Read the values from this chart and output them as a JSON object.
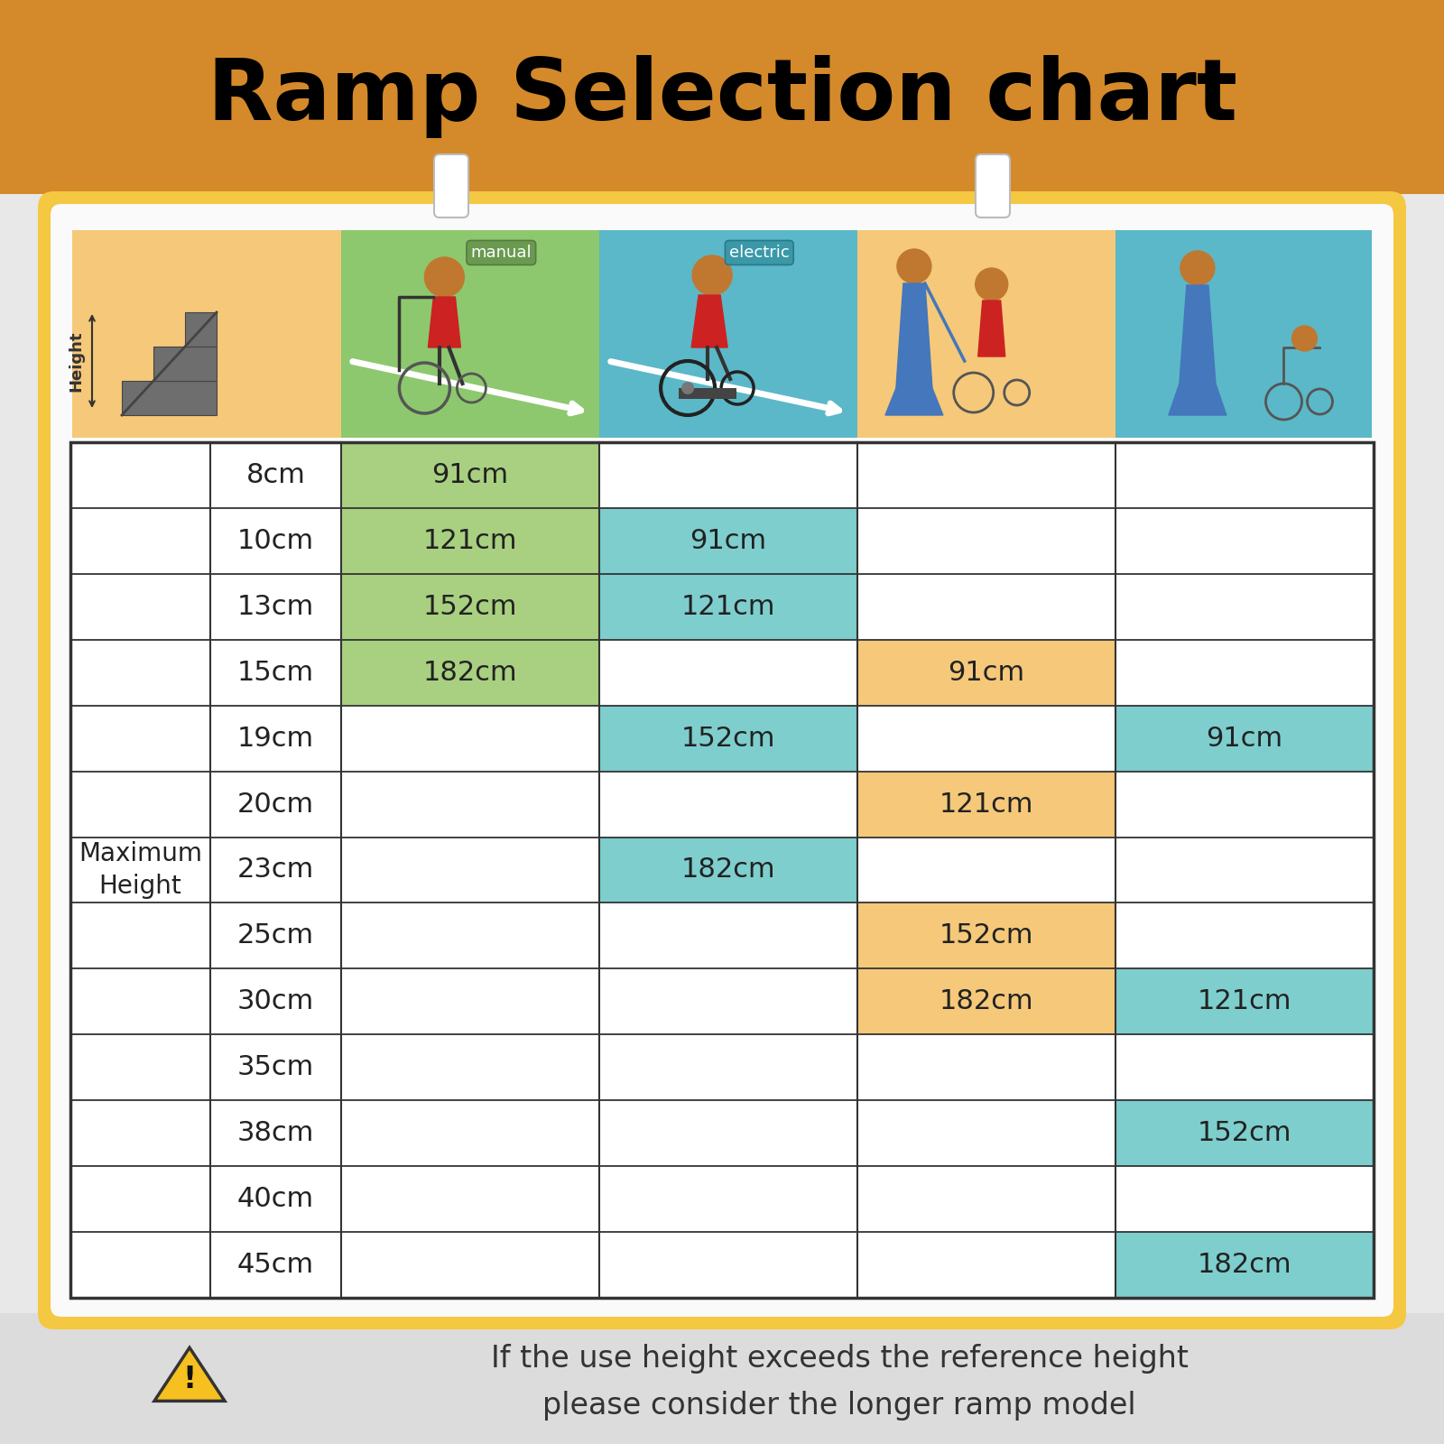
{
  "title": "Ramp Selection chart",
  "title_bg": "#D4892A",
  "title_color": "#000000",
  "card_bg": "#F5C842",
  "card_inner_bg": "#F5D87A",
  "outer_bg": "#E8E8E8",
  "header_orange_bg": "#F5C87A",
  "header_green_bg": "#8DC86E",
  "header_blue_bg": "#5BB8C8",
  "header_orange2_bg": "#F5C87A",
  "header_teal_bg": "#5BB8C8",
  "cell_green_bg": "#A8D080",
  "cell_blue_bg": "#7ECECE",
  "cell_orange_bg": "#F5C87A",
  "cell_teal_bg": "#7ECECE",
  "heights": [
    "8cm",
    "10cm",
    "13cm",
    "15cm",
    "19cm",
    "20cm",
    "23cm",
    "25cm",
    "30cm",
    "35cm",
    "38cm",
    "40cm",
    "45cm"
  ],
  "col1_values": [
    "91cm",
    "121cm",
    "152cm",
    "182cm",
    "",
    "",
    "",
    "",
    "",
    "",
    "",
    "",
    ""
  ],
  "col2_values": [
    "",
    "91cm",
    "121cm",
    "",
    "152cm",
    "",
    "182cm",
    "",
    "",
    "",
    "",
    "",
    ""
  ],
  "col3_values": [
    "",
    "",
    "",
    "91cm",
    "",
    "121cm",
    "",
    "152cm",
    "182cm",
    "",
    "",
    "",
    ""
  ],
  "col4_values": [
    "",
    "",
    "",
    "",
    "91cm",
    "",
    "",
    "",
    "121cm",
    "",
    "152cm",
    "",
    "182cm"
  ],
  "col1_colored_rows": [
    0,
    1,
    2,
    3
  ],
  "col2_colored_rows": [
    1,
    2,
    4,
    6
  ],
  "col3_colored_rows": [
    3,
    5,
    7,
    8
  ],
  "col4_colored_rows": [
    4,
    8,
    10,
    12
  ],
  "footer_text_line1": "If the use height exceeds the reference height",
  "footer_text_line2": "please consider the longer ramp model",
  "footer_bg": "#DCDCDC",
  "warning_triangle_color": "#F5C020",
  "warning_triangle_border": "#333333"
}
